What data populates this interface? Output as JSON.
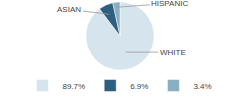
{
  "chart_data": {
    "type": "pie",
    "categories": [
      "89.7%",
      "6.9%",
      "3.4%"
    ],
    "values": [
      89.7,
      6.9,
      3.4
    ],
    "colors": [
      "#d6e4ee",
      "#2e5f7e",
      "#8aafc2"
    ],
    "annotations": [
      "WHITE",
      "ASIAN",
      "HISPANIC"
    ],
    "legend": "bottom"
  }
}
